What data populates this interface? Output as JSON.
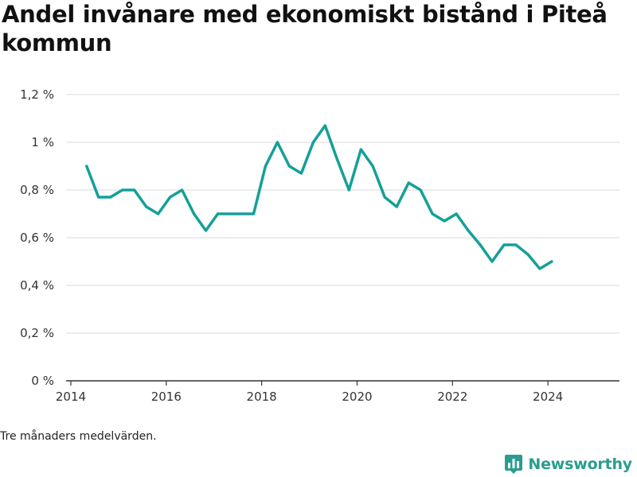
{
  "header": {
    "title": "Andel invånare med ekonomiskt bistånd i Piteå kommun"
  },
  "footnote": "Tre månaders medelvärden.",
  "brand": {
    "name": "Newsworthy",
    "icon": "bar-chart-logo-icon",
    "color": "#2a9d8f"
  },
  "chart_data": {
    "type": "line",
    "title": "Andel invånare med ekonomiskt bistånd i Piteå kommun",
    "xlabel": "",
    "ylabel": "",
    "xlim": [
      2013.9,
      2025.5
    ],
    "ylim": [
      0,
      1.2
    ],
    "x_ticks": [
      2014,
      2016,
      2018,
      2020,
      2022,
      2024
    ],
    "x_tick_labels": [
      "2014",
      "2016",
      "2018",
      "2020",
      "2022",
      "2024"
    ],
    "y_ticks": [
      0,
      0.2,
      0.4,
      0.6,
      0.8,
      1.0,
      1.2
    ],
    "y_tick_labels": [
      "0 %",
      "0,2 %",
      "0,4 %",
      "0,6 %",
      "0,8 %",
      "1 %",
      "1,2 %"
    ],
    "grid": true,
    "line_color": "#14a098",
    "series": [
      {
        "x": [
          2014.33,
          2014.58,
          2014.83,
          2015.08,
          2015.33,
          2015.58,
          2015.83,
          2016.08,
          2016.33,
          2016.58,
          2016.83,
          2017.08,
          2017.33,
          2017.58,
          2017.83,
          2018.08,
          2018.33,
          2018.58,
          2018.83,
          2019.08,
          2019.33,
          2019.58,
          2019.83,
          2020.08,
          2020.33,
          2020.58,
          2020.83,
          2021.08,
          2021.33,
          2021.58,
          2021.83,
          2022.08,
          2022.33,
          2022.58,
          2022.83,
          2023.08,
          2023.33,
          2023.58,
          2023.83,
          2024.08
        ],
        "values": [
          0.9,
          0.77,
          0.77,
          0.8,
          0.8,
          0.73,
          0.7,
          0.77,
          0.8,
          0.7,
          0.63,
          0.7,
          0.7,
          0.7,
          0.7,
          0.9,
          1.0,
          0.9,
          0.87,
          1.0,
          1.07,
          0.93,
          0.8,
          0.97,
          0.9,
          0.77,
          0.73,
          0.83,
          0.8,
          0.7,
          0.67,
          0.7,
          0.63,
          0.57,
          0.5,
          0.57,
          0.57,
          0.53,
          0.47,
          0.5
        ]
      }
    ]
  }
}
